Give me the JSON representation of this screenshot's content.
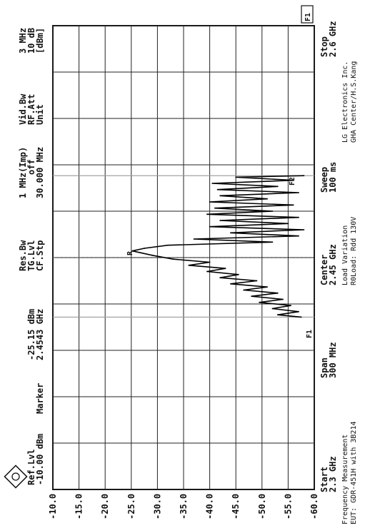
{
  "header": {
    "ref_lvl_label": "Ref.Lvl",
    "ref_lvl_value": "-10.00 dBm",
    "marker_label": "Marker",
    "marker_value1": "-25.15 dBm",
    "marker_value2": "2.4543 GHz",
    "res_bw_label": "Res.Bw",
    "res_bw_value": "1 MHz(Imp)",
    "tg_lvl_label": "TG.Lvl",
    "tg_lvl_value": "off",
    "cf_stp_label": "CF.Stp",
    "cf_stp_value": "30.000 MHz",
    "vid_bw_label": "Vid.Bw",
    "vid_bw_value": "3 MHz",
    "rf_att_label": "RF.Att",
    "rf_att_value": "10 dB",
    "unit_label": "Unit",
    "unit_value": "[dBm]"
  },
  "bottom": {
    "start_label": "Start",
    "start_value": "2.3 GHz",
    "span_label": "Span",
    "span_value": "300 MHz",
    "center_label": "Center",
    "center_value": "2.45 GHz",
    "sweep_label": "Sweep",
    "sweep_value": "100 ms",
    "stop_label": "Stop",
    "stop_value": "2.6 GHz",
    "note1": "Load Variation",
    "note2": "R0Load: Rdd 130V",
    "company1": "LG Electronics Inc.",
    "company2": "GHA Center/H.S.Kang",
    "footer1": "Frequency Measurement",
    "footer2": "EUT: GDR-451H with 3B214"
  },
  "markers": {
    "f1": "F1",
    "f2": "F2",
    "corner_tag": "F1",
    "peak": "R"
  },
  "chart_data": {
    "type": "line",
    "title": "",
    "xlabel": "",
    "ylabel": "",
    "xunit": "GHz",
    "yunit": "dBm",
    "xlim": [
      2.3,
      2.6
    ],
    "ylim": [
      -60,
      -10
    ],
    "y_ticks": [
      -10.0,
      -15.0,
      -20.0,
      -25.0,
      -30.0,
      -35.0,
      -40.0,
      -45.0,
      -50.0,
      -55.0,
      -60.0
    ],
    "y_tick_labels": [
      "-10.0",
      "-15.0",
      "-20.0",
      "-25.0",
      "-30.0",
      "-35.0",
      "-40.0",
      "-45.0",
      "-50.0",
      "-55.0",
      "-60.0"
    ],
    "grid": true,
    "marker_lines_ghz": [
      2.4115,
      2.503
    ],
    "center_line_ghz": 2.45,
    "series": [
      {
        "x": [
          2.4115,
          2.413,
          2.415,
          2.417,
          2.419,
          2.421,
          2.423,
          2.425,
          2.427,
          2.429,
          2.431,
          2.433,
          2.435,
          2.437,
          2.439,
          2.441,
          2.443,
          2.445,
          2.447,
          2.449,
          2.4515,
          2.4543,
          2.456,
          2.458,
          2.46,
          2.462,
          2.464,
          2.466,
          2.468,
          2.47,
          2.472,
          2.474,
          2.476,
          2.478,
          2.48,
          2.482,
          2.484,
          2.486,
          2.488,
          2.49,
          2.492,
          2.494,
          2.496,
          2.498,
          2.5,
          2.502,
          2.503
        ],
        "y": [
          -57.5,
          -53.0,
          -57.0,
          -52.0,
          -55.5,
          -49.5,
          -54.0,
          -48.0,
          -53.0,
          -46.5,
          -51.0,
          -44.0,
          -49.0,
          -42.0,
          -45.5,
          -39.5,
          -43.0,
          -36.0,
          -40.0,
          -33.0,
          -29.0,
          -25.2,
          -27.5,
          -32.0,
          -52.0,
          -37.0,
          -57.0,
          -44.0,
          -58.0,
          -40.0,
          -55.0,
          -42.0,
          -57.0,
          -39.5,
          -52.0,
          -41.0,
          -56.0,
          -40.0,
          -51.0,
          -42.0,
          -57.0,
          -41.5,
          -53.0,
          -40.5,
          -56.0,
          -45.0,
          -58.0
        ]
      }
    ]
  }
}
